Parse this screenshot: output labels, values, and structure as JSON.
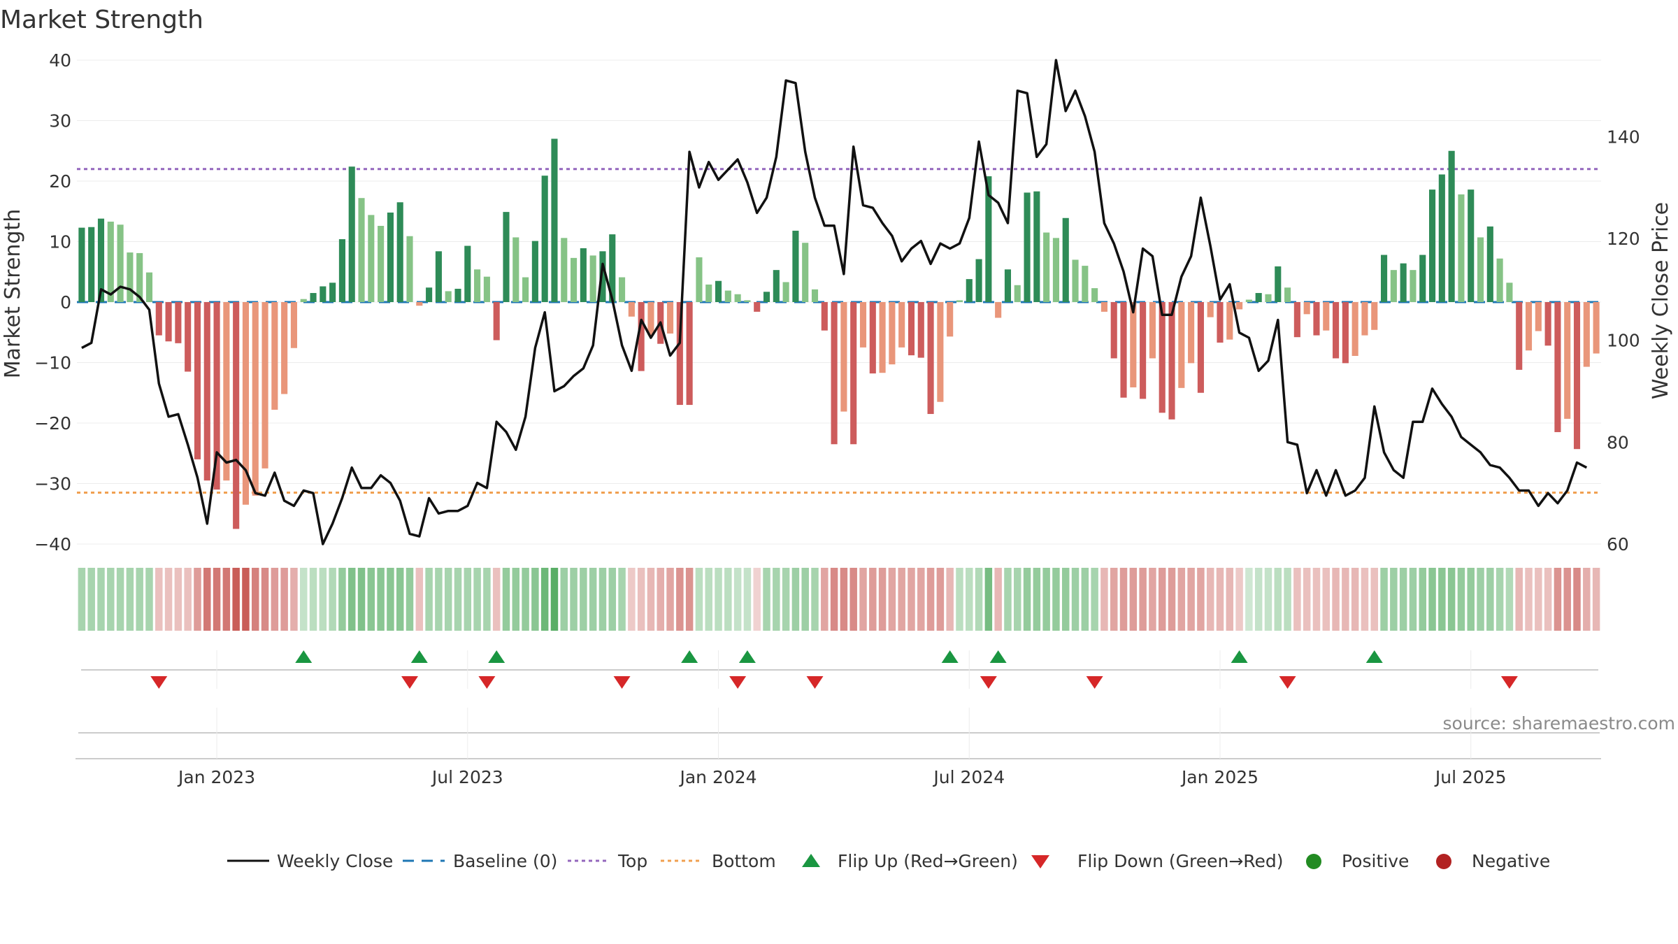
{
  "chart_data": {
    "type": "bar",
    "title": "Market Strength",
    "ylabel_left": "Market Strength",
    "ylabel_right": "Weekly Close Price",
    "source": "source: sharemaestro.com",
    "ylim_left": [
      -40,
      40
    ],
    "ylim_right": [
      60,
      155
    ],
    "yticks_left": [
      {
        "v": 40,
        "label": "40"
      },
      {
        "v": 30,
        "label": "30"
      },
      {
        "v": 20,
        "label": "20"
      },
      {
        "v": 10,
        "label": "10"
      },
      {
        "v": 0,
        "label": "0"
      },
      {
        "v": -10,
        "label": "−10"
      },
      {
        "v": -20,
        "label": "−20"
      },
      {
        "v": -30,
        "label": "−30"
      },
      {
        "v": -40,
        "label": "−40"
      }
    ],
    "yticks_right": [
      {
        "v": 140,
        "label": "140"
      },
      {
        "v": 120,
        "label": "120"
      },
      {
        "v": 100,
        "label": "100"
      },
      {
        "v": 80,
        "label": "80"
      },
      {
        "v": 60,
        "label": "60"
      }
    ],
    "xticks": [
      {
        "week": 14,
        "label": "Jan 2023"
      },
      {
        "week": 40,
        "label": "Jul 2023"
      },
      {
        "week": 66,
        "label": "Jan 2024"
      },
      {
        "week": 92,
        "label": "Jul 2024"
      },
      {
        "week": 118,
        "label": "Jan 2025"
      },
      {
        "week": 144,
        "label": "Jul 2025"
      }
    ],
    "top_line": 22,
    "bottom_line": -31.5,
    "baseline": 0,
    "strength": [
      12.3,
      12.4,
      13.8,
      13.3,
      12.8,
      8.2,
      8.1,
      4.9,
      -5.5,
      -6.5,
      -6.8,
      -11.5,
      -26,
      -29.5,
      -31,
      -29.5,
      -37.5,
      -33.5,
      -32,
      -27.5,
      -17.8,
      -15.2,
      -7.6,
      0.5,
      1.5,
      2.6,
      3.2,
      10.4,
      22.4,
      17.2,
      14.4,
      12.6,
      14.8,
      16.5,
      10.9,
      -0.6,
      2.4,
      8.4,
      1.8,
      2.2,
      9.3,
      5.4,
      4.2,
      -6.3,
      14.9,
      10.7,
      4.1,
      10.1,
      20.9,
      27,
      10.6,
      7.3,
      8.9,
      7.7,
      8.4,
      11.2,
      4.1,
      -2.4,
      -11.4,
      -5.5,
      -6.9,
      -5.2,
      -17,
      -17,
      7.4,
      2.9,
      3.5,
      1.9,
      1.3,
      0.3,
      -1.6,
      1.7,
      5.3,
      3.3,
      11.8,
      9.8,
      2.1,
      -4.7,
      -23.5,
      -18.1,
      -23.5,
      -7.5,
      -11.8,
      -11.7,
      -10.3,
      -7.5,
      -8.8,
      -9.2,
      -18.5,
      -16.5,
      -5.7,
      0.3,
      3.8,
      7.1,
      20.8,
      -2.6,
      5.4,
      2.8,
      18.1,
      18.3,
      11.5,
      10.6,
      13.9,
      7,
      6,
      2.3,
      -1.6,
      -9.3,
      -15.8,
      -14.1,
      -16,
      -9.3,
      -18.3,
      -19.4,
      -14.2,
      -10.1,
      -15,
      -2.5,
      -6.7,
      -6.2,
      -1.2,
      0.4,
      1.5,
      1.3,
      5.9,
      2.4,
      -5.8,
      -2,
      -5.5,
      -4.7,
      -9.3,
      -10.1,
      -8.9,
      -5.5,
      -4.6,
      7.8,
      5.3,
      6.4,
      5.3,
      7.8,
      18.6,
      21.1,
      25,
      17.8,
      18.6,
      10.7,
      12.5,
      7.2,
      3.2,
      -11.2,
      -8,
      -4.8,
      -7.2,
      -21.5,
      -19.3,
      -24.3,
      -10.7,
      -8.5
    ],
    "bar_colors": {
      "green_dark": "#2e8b57",
      "green_light": "#86c386",
      "red_dark": "#cd5c5c",
      "red_light": "#e9967a"
    },
    "weekly_close": [
      98.5,
      99.5,
      110,
      109,
      110.5,
      110,
      108.5,
      106,
      91.5,
      85,
      85.5,
      79.5,
      73,
      64,
      78,
      76,
      76.5,
      74.5,
      70,
      69.5,
      74,
      68.5,
      67.5,
      70.5,
      70,
      60,
      64,
      69,
      75,
      71,
      71,
      73.5,
      72,
      68.5,
      62,
      61.5,
      69,
      66,
      66.5,
      66.5,
      67.5,
      72,
      71,
      84,
      82,
      78.5,
      85,
      98.5,
      105.5,
      90,
      91,
      93,
      94.5,
      99,
      115,
      108,
      99,
      94,
      104,
      100.5,
      103.5,
      97,
      99.5,
      137,
      130,
      135,
      131.5,
      133.5,
      135.5,
      131,
      125,
      128,
      136,
      151,
      150.5,
      137,
      128,
      122.5,
      122.5,
      113,
      138,
      126.5,
      126,
      123,
      120.5,
      115.5,
      118,
      119.5,
      115,
      119,
      118,
      119,
      124,
      139,
      128.5,
      127,
      123,
      149,
      148.5,
      136,
      138.5,
      155,
      145,
      149,
      144,
      137,
      123,
      119,
      113.5,
      105.5,
      118,
      116.5,
      105,
      105,
      112.5,
      116.5,
      128,
      118.5,
      108,
      111,
      101.5,
      100.5,
      94,
      96,
      104,
      80,
      79.5,
      70,
      74.5,
      69.5,
      74.5,
      69.5,
      70.5,
      73,
      87,
      78,
      74.5,
      73,
      84,
      84,
      90.5,
      87.5,
      85,
      81,
      79.5,
      78,
      75.5,
      75,
      73,
      70.5,
      70.5,
      67.5,
      70,
      68,
      70.5,
      76,
      75
    ],
    "band": [
      0.45,
      0.45,
      0.45,
      0.45,
      0.45,
      0.45,
      0.45,
      0.45,
      0.35,
      0.35,
      0.35,
      0.35,
      0.55,
      0.75,
      0.75,
      0.75,
      0.9,
      0.9,
      0.7,
      0.65,
      0.55,
      0.55,
      0.45,
      0.3,
      0.35,
      0.35,
      0.4,
      0.55,
      0.65,
      0.65,
      0.6,
      0.6,
      0.6,
      0.6,
      0.55,
      0.35,
      0.45,
      0.45,
      0.45,
      0.45,
      0.45,
      0.45,
      0.45,
      0.35,
      0.55,
      0.55,
      0.55,
      0.6,
      0.75,
      0.85,
      0.5,
      0.5,
      0.5,
      0.5,
      0.5,
      0.5,
      0.45,
      0.3,
      0.35,
      0.4,
      0.45,
      0.5,
      0.6,
      0.6,
      0.35,
      0.35,
      0.35,
      0.35,
      0.3,
      0.3,
      0.25,
      0.45,
      0.45,
      0.45,
      0.5,
      0.5,
      0.45,
      0.5,
      0.65,
      0.65,
      0.65,
      0.5,
      0.55,
      0.55,
      0.5,
      0.5,
      0.5,
      0.5,
      0.55,
      0.55,
      0.4,
      0.35,
      0.35,
      0.4,
      0.7,
      0.4,
      0.45,
      0.45,
      0.55,
      0.55,
      0.55,
      0.55,
      0.55,
      0.5,
      0.5,
      0.45,
      0.4,
      0.5,
      0.55,
      0.55,
      0.55,
      0.5,
      0.55,
      0.55,
      0.5,
      0.5,
      0.5,
      0.4,
      0.4,
      0.4,
      0.3,
      0.25,
      0.3,
      0.3,
      0.35,
      0.35,
      0.35,
      0.35,
      0.35,
      0.35,
      0.4,
      0.4,
      0.4,
      0.35,
      0.35,
      0.5,
      0.5,
      0.5,
      0.5,
      0.55,
      0.6,
      0.6,
      0.6,
      0.55,
      0.55,
      0.5,
      0.5,
      0.45,
      0.4,
      0.4,
      0.35,
      0.35,
      0.35,
      0.6,
      0.6,
      0.65,
      0.45,
      0.4
    ],
    "flip_up_weeks": [
      23,
      35,
      43,
      63,
      69,
      90,
      95,
      120,
      134
    ],
    "flip_down_weeks": [
      8,
      34,
      42,
      56,
      68,
      76,
      94,
      105,
      125,
      148
    ],
    "legend": {
      "weekly_close": "Weekly Close",
      "baseline": "Baseline (0)",
      "top": "Top",
      "bottom": "Bottom",
      "flip_up": "Flip Up (Red→Green)",
      "flip_down": "Flip Down (Green→Red)",
      "positive": "Positive",
      "negative": "Negative"
    },
    "colors": {
      "price_line": "#111111",
      "baseline": "#1f77b4",
      "top": "#9467bd",
      "bottom": "#f0a050",
      "flip_up": "#1a9641",
      "flip_down": "#d62728",
      "positive": "#228b22",
      "negative": "#b22222",
      "grid": "#ececec"
    }
  }
}
